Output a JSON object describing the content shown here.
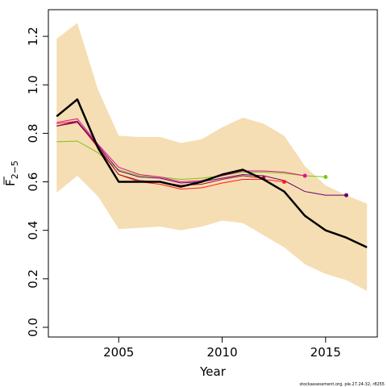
{
  "chart_data": {
    "type": "line",
    "xlabel": "Year",
    "ylabel": "F",
    "ylabel_sub": "2−5",
    "xlim": [
      2001.6,
      2017.5
    ],
    "ylim": [
      -0.04,
      1.31
    ],
    "xticks": [
      2005,
      2010,
      2015
    ],
    "yticks": [
      0.0,
      0.2,
      0.4,
      0.6,
      0.8,
      1.0,
      1.2
    ],
    "ytick_labels": [
      "0.0",
      "0.2",
      "0.4",
      "0.6",
      "0.8",
      "1.0",
      "1.2"
    ],
    "band": {
      "color": "#f5deb3",
      "x": [
        2002,
        2003,
        2004,
        2005,
        2006,
        2007,
        2008,
        2009,
        2010,
        2011,
        2012,
        2013,
        2014,
        2015,
        2016,
        2017
      ],
      "lower": [
        0.555,
        0.625,
        0.54,
        0.405,
        0.41,
        0.415,
        0.4,
        0.415,
        0.44,
        0.43,
        0.38,
        0.33,
        0.26,
        0.22,
        0.195,
        0.15
      ],
      "upper": [
        1.19,
        1.255,
        0.98,
        0.79,
        0.785,
        0.785,
        0.76,
        0.775,
        0.825,
        0.865,
        0.84,
        0.79,
        0.665,
        0.585,
        0.545,
        0.51
      ]
    },
    "main_series": {
      "color": "#000000",
      "x": [
        2002,
        2003,
        2004,
        2005,
        2006,
        2007,
        2008,
        2009,
        2010,
        2011,
        2012,
        2013,
        2014,
        2015,
        2016,
        2017
      ],
      "values": [
        0.87,
        0.94,
        0.74,
        0.6,
        0.6,
        0.6,
        0.58,
        0.6,
        0.63,
        0.65,
        0.61,
        0.56,
        0.46,
        0.4,
        0.37,
        0.33
      ]
    },
    "series": [
      {
        "color": "#7cc515",
        "x": [
          2002,
          2003,
          2004,
          2005,
          2006,
          2007,
          2008,
          2009,
          2010,
          2011,
          2012,
          2013,
          2014,
          2015
        ],
        "values": [
          0.765,
          0.768,
          0.72,
          0.65,
          0.625,
          0.62,
          0.61,
          0.615,
          0.625,
          0.64,
          0.64,
          0.635,
          0.625,
          0.62
        ]
      },
      {
        "color": "#e0109a",
        "x": [
          2002,
          2003,
          2004,
          2005,
          2006,
          2007,
          2008,
          2009,
          2010,
          2011,
          2012,
          2013,
          2014
        ],
        "values": [
          0.845,
          0.86,
          0.755,
          0.66,
          0.63,
          0.62,
          0.6,
          0.605,
          0.625,
          0.645,
          0.645,
          0.64,
          0.625
        ]
      },
      {
        "color": "#ff1a1a",
        "x": [
          2002,
          2003,
          2004,
          2005,
          2006,
          2007,
          2008,
          2009,
          2010,
          2011,
          2012,
          2013
        ],
        "values": [
          0.84,
          0.85,
          0.74,
          0.63,
          0.6,
          0.59,
          0.57,
          0.575,
          0.595,
          0.61,
          0.61,
          0.6
        ]
      },
      {
        "color": "#a0102e",
        "x": [
          2002,
          2003,
          2004,
          2005,
          2006,
          2007,
          2008,
          2009,
          2010,
          2011,
          2012
        ],
        "values": [
          0.83,
          0.845,
          0.745,
          0.63,
          0.605,
          0.6,
          0.585,
          0.59,
          0.61,
          0.625,
          0.615
        ]
      },
      {
        "color": "#6a006a",
        "x": [
          2002,
          2003,
          2004,
          2005,
          2006,
          2007,
          2008,
          2009,
          2010,
          2011,
          2012,
          2013,
          2014,
          2015,
          2016
        ],
        "values": [
          0.83,
          0.85,
          0.75,
          0.645,
          0.62,
          0.615,
          0.595,
          0.6,
          0.615,
          0.63,
          0.625,
          0.605,
          0.56,
          0.545,
          0.545
        ]
      }
    ],
    "footnote": "stockassessment.org, ple.27.24-32, r8255"
  }
}
